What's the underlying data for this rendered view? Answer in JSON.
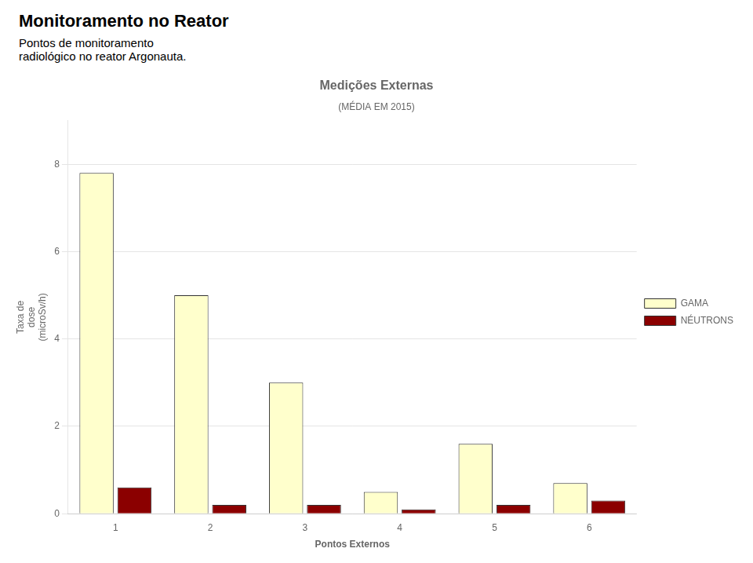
{
  "title": "Monitoramento no Reator",
  "subtitle": "Pontos de monitoramento\nradiológico no reator Argonauta.",
  "chart_data": {
    "type": "bar",
    "title": "Medições Externas",
    "subtitle": "(MÉDIA EM 2015)",
    "x_label": "Pontos Externos",
    "y_label": "Taxa de\ndose\n(microSv/h)",
    "categories": [
      "1",
      "2",
      "3",
      "4",
      "5",
      "6"
    ],
    "series": [
      {
        "name": "GAMA",
        "color": "#FFFFCC",
        "values": [
          7.8,
          5.0,
          3.0,
          0.5,
          1.6,
          0.7
        ]
      },
      {
        "name": "NÉUTRONS",
        "color": "#8B0000",
        "values": [
          0.6,
          0.2,
          0.2,
          0.1,
          0.2,
          0.3
        ]
      }
    ],
    "ylim": [
      0,
      9
    ],
    "yticks": [
      0,
      2,
      4,
      6,
      8
    ],
    "grid": true,
    "legend": "right"
  }
}
